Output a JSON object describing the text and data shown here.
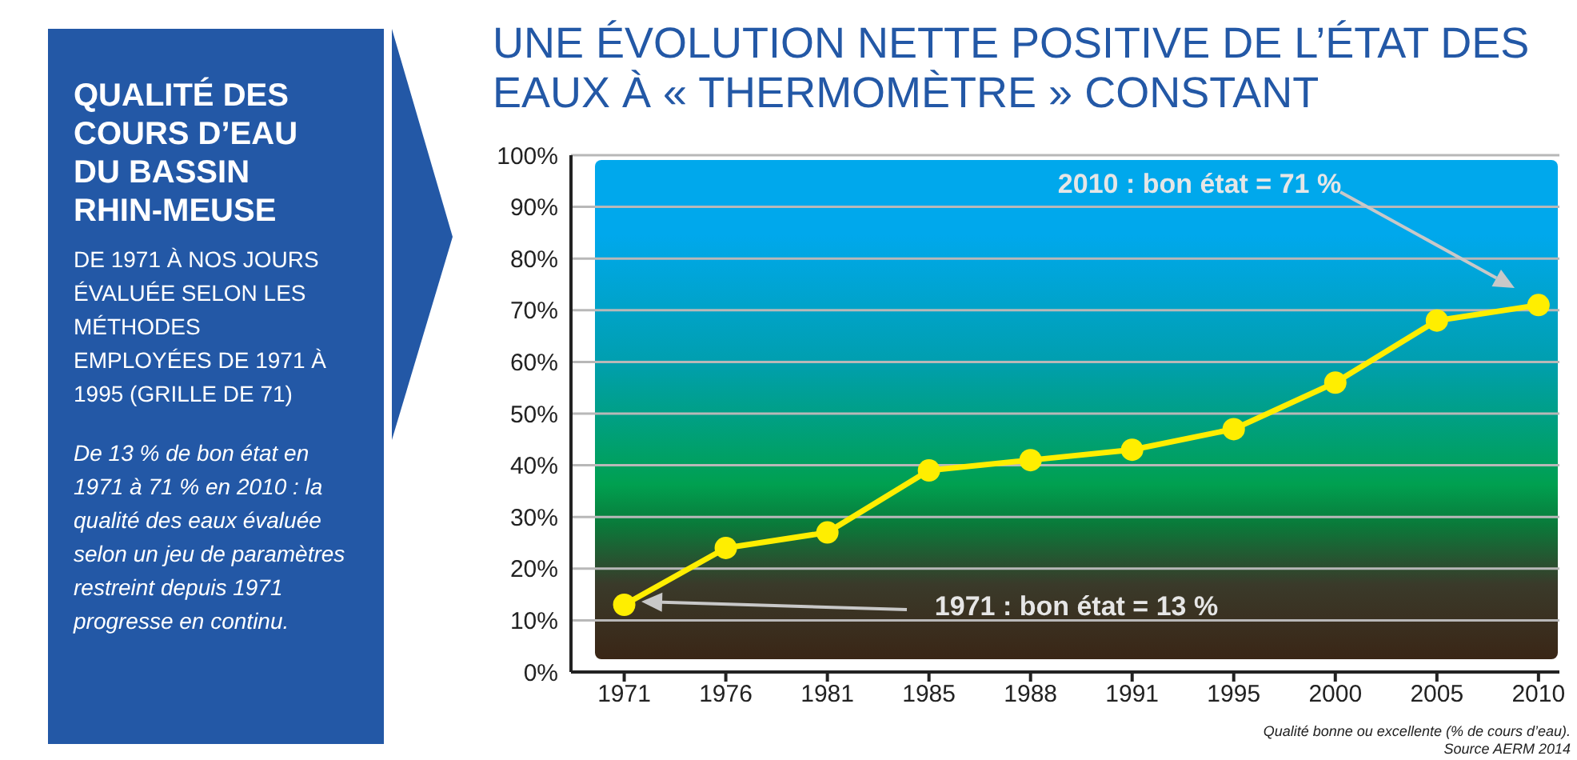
{
  "chart_data": [
    {
      "type": "other",
      "title": "QUALITÉ DES COURS D’EAU DU BASSIN RHIN-MEUSE",
      "subtitle": "DE 1971 À NOS JOURS ÉVALUÉE SELON LES MÉTHODES EMPLOYÉES DE 1971 À 1995 (GRILLE DE 71)",
      "annotations": [
        "De 13 % de bon état en 1971 à 71 % en 2010 : la qualité des eaux évaluée selon un jeu de paramètres restreint depuis 1971 progresse en continu."
      ]
    },
    {
      "type": "line",
      "title": "UNE ÉVOLUTION NETTE POSITIVE DE L’ÉTAT DES EAUX À « THERMOMÈTRE » CONSTANT",
      "categories": [
        "1971",
        "1976",
        "1981",
        "1985",
        "1988",
        "1991",
        "1995",
        "2000",
        "2005",
        "2010"
      ],
      "series": [
        {
          "color": "#ffee00",
          "values": [
            13,
            24,
            27,
            39,
            41,
            43,
            47,
            56,
            68,
            71
          ]
        }
      ],
      "ylim": [
        0,
        100
      ],
      "yticks": [
        {
          "value": 0,
          "label": "0%"
        },
        {
          "value": 10,
          "label": "10%"
        },
        {
          "value": 20,
          "label": "20%"
        },
        {
          "value": 30,
          "label": "30%"
        },
        {
          "value": 40,
          "label": "40%"
        },
        {
          "value": 50,
          "label": "50%"
        },
        {
          "value": 60,
          "label": "60%"
        },
        {
          "value": 70,
          "label": "70%"
        },
        {
          "value": 80,
          "label": "80%"
        },
        {
          "value": 90,
          "label": "90%"
        },
        {
          "value": 100,
          "label": "100%"
        }
      ],
      "grid": "y",
      "marker": "circle",
      "line_style": "solid",
      "annotations": [
        "2010 : bon état = 71 %",
        "1971 : bon état = 13 %",
        "Qualité bonne ou excellente (% de cours d’eau).",
        "Source AERM 2014"
      ]
    }
  ]
}
